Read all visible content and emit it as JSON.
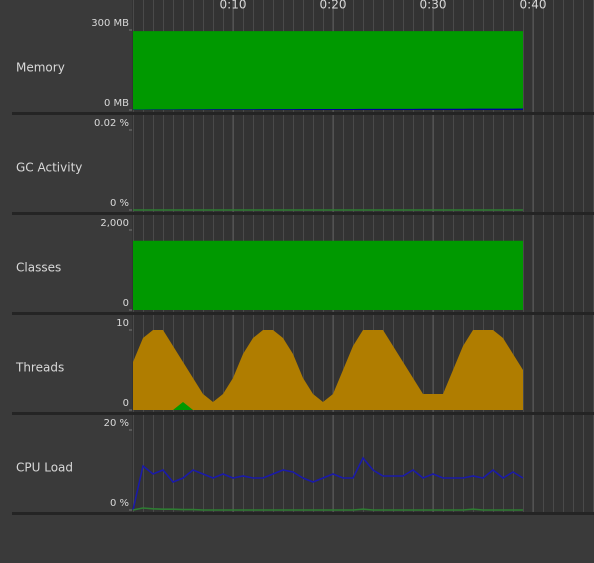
{
  "time_axis": {
    "xlim": [
      0,
      46
    ],
    "ticks": [
      {
        "value": 10,
        "label": "0:10"
      },
      {
        "value": 20,
        "label": "0:20"
      },
      {
        "value": 30,
        "label": "0:30"
      },
      {
        "value": 40,
        "label": "0:40"
      }
    ]
  },
  "x": [
    0,
    1,
    2,
    3,
    4,
    5,
    6,
    7,
    8,
    9,
    10,
    11,
    12,
    13,
    14,
    15,
    16,
    17,
    18,
    19,
    20,
    21,
    22,
    23,
    24,
    25,
    26,
    27,
    28,
    29,
    30,
    31,
    32,
    33,
    34,
    35,
    36,
    37,
    38,
    39
  ],
  "panels": [
    {
      "name": "Memory",
      "type": "area",
      "ylim": [
        0,
        300
      ],
      "yticks": [
        {
          "value": 0,
          "label": "0 MB"
        },
        {
          "value": 300,
          "label": "300 MB"
        }
      ],
      "series": [
        {
          "color": "#009900",
          "values": [
            296,
            296,
            296,
            296,
            296,
            296,
            296,
            296,
            296,
            296,
            296,
            296,
            296,
            296,
            296,
            296,
            296,
            296,
            296,
            296,
            296,
            296,
            296,
            296,
            296,
            296,
            296,
            296,
            296,
            296,
            296,
            296,
            296,
            296,
            296,
            296,
            296,
            296,
            296,
            296
          ]
        },
        {
          "color": "#000099",
          "values": [
            1.5,
            1.5,
            1.8,
            2,
            2,
            2.2,
            2.4,
            2.5,
            2.6,
            2.8,
            3,
            3,
            3,
            3.1,
            3.2,
            3.3,
            3.5,
            3.6,
            3.6,
            3.7,
            3.8,
            3.8,
            3.9,
            4,
            4,
            4.1,
            4.2,
            4.3,
            4.4,
            4.5,
            4.6,
            4.7,
            4.8,
            4.9,
            5,
            5,
            5.1,
            5.2,
            5.3,
            5.5
          ]
        }
      ]
    },
    {
      "name": "GC Activity",
      "type": "line",
      "ylim": [
        0,
        0.02
      ],
      "yticks": [
        {
          "value": 0,
          "label": "0 %"
        },
        {
          "value": 0.02,
          "label": "0.02 %"
        }
      ],
      "series": [
        {
          "color": "#2e7d32",
          "values": [
            0,
            0,
            0,
            0,
            0,
            0,
            0,
            0,
            0,
            0,
            0,
            0,
            0,
            0,
            0,
            0,
            0,
            0,
            0,
            0,
            0,
            0,
            0,
            0,
            0,
            0,
            0,
            0,
            0,
            0,
            0,
            0,
            0,
            0,
            0,
            0,
            0,
            0,
            0,
            0
          ]
        }
      ]
    },
    {
      "name": "Classes",
      "type": "area",
      "ylim": [
        0,
        2000
      ],
      "yticks": [
        0,
        {
          "value": 2000,
          "label": "2,000"
        }
      ],
      "series": [
        {
          "color": "#009900",
          "values": [
            1730,
            1730,
            1730,
            1730,
            1730,
            1730,
            1730,
            1730,
            1730,
            1730,
            1730,
            1730,
            1730,
            1730,
            1730,
            1730,
            1730,
            1730,
            1730,
            1730,
            1730,
            1730,
            1730,
            1730,
            1730,
            1730,
            1730,
            1730,
            1730,
            1730,
            1730,
            1730,
            1730,
            1730,
            1730,
            1730,
            1730,
            1730,
            1730,
            1730
          ]
        }
      ]
    },
    {
      "name": "Threads",
      "type": "area",
      "ylim": [
        0,
        10
      ],
      "yticks": [
        0,
        10
      ],
      "series": [
        {
          "color": "#b07d00",
          "values": [
            6,
            9,
            10,
            10,
            8,
            6,
            4,
            2,
            1,
            2,
            4,
            7,
            9,
            10,
            10,
            9,
            7,
            4,
            2,
            1,
            2,
            5,
            8,
            10,
            10,
            10,
            8,
            6,
            4,
            2,
            2,
            2,
            5,
            8,
            10,
            10,
            10,
            9,
            7,
            5
          ]
        },
        {
          "color": "#009900",
          "values": [
            0,
            0,
            0,
            0,
            0,
            1,
            0,
            0,
            0,
            0,
            0,
            0,
            0,
            0,
            0,
            0,
            0,
            0,
            0,
            0,
            0,
            0,
            0,
            0,
            0,
            0,
            0,
            0,
            0,
            0,
            0,
            0,
            0,
            0,
            0,
            0,
            0,
            0,
            0,
            0
          ]
        }
      ]
    },
    {
      "name": "CPU Load",
      "type": "line",
      "ylim": [
        0,
        20
      ],
      "yticks": [
        {
          "value": 0,
          "label": "0 %"
        },
        {
          "value": 20,
          "label": "20 %"
        }
      ],
      "series": [
        {
          "color": "#1a1aa8",
          "values": [
            0,
            11,
            9,
            10,
            7,
            8,
            10,
            9,
            8,
            9,
            8,
            8.5,
            8,
            8,
            9,
            10,
            9.5,
            8,
            7,
            8,
            9,
            8,
            8,
            13,
            10,
            8.5,
            8.5,
            8.5,
            10,
            8,
            9,
            8,
            8,
            8,
            8.5,
            8,
            10,
            8,
            9.5,
            8
          ]
        },
        {
          "color": "#2e7d32",
          "values": [
            0,
            0.5,
            0.3,
            0.2,
            0.2,
            0.1,
            0.1,
            0,
            0,
            0,
            0,
            0,
            0,
            0,
            0,
            0,
            0,
            0,
            0,
            0,
            0,
            0,
            0,
            0.2,
            0,
            0,
            0,
            0,
            0,
            0,
            0,
            0,
            0,
            0,
            0.2,
            0,
            0,
            0,
            0,
            0
          ]
        }
      ]
    }
  ]
}
